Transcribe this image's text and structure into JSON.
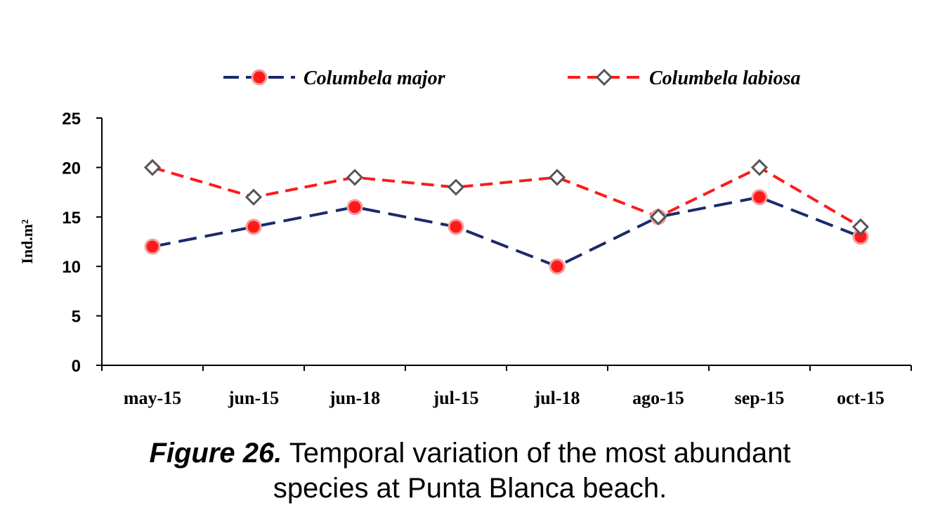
{
  "chart_data": {
    "type": "line",
    "categories": [
      "may-15",
      "jun-15",
      "jun-18",
      "jul-15",
      "jul-18",
      "ago-15",
      "sep-15",
      "oct-15"
    ],
    "series": [
      {
        "name": "Columbela major",
        "values": [
          12,
          14,
          16,
          14,
          10,
          15,
          17,
          13
        ],
        "color": "#1a2a6c",
        "line_style": "long-dash",
        "marker": "red-circle"
      },
      {
        "name": "Columbela labiosa",
        "values": [
          20,
          17,
          19,
          18,
          19,
          15,
          20,
          14
        ],
        "color": "#ff1a1a",
        "line_style": "dash",
        "marker": "open-diamond"
      }
    ],
    "ylabel": "Ind.m²",
    "xlabel": "",
    "title": "",
    "ylim": [
      0,
      25
    ],
    "yticks": [
      "0",
      "5",
      "10",
      "15",
      "20",
      "25"
    ],
    "grid": false,
    "legend_position": "top"
  },
  "caption": {
    "label": "Figure 26.",
    "text_line1": " Temporal variation of the most abundant",
    "text_line2": "species at Punta Blanca beach."
  }
}
